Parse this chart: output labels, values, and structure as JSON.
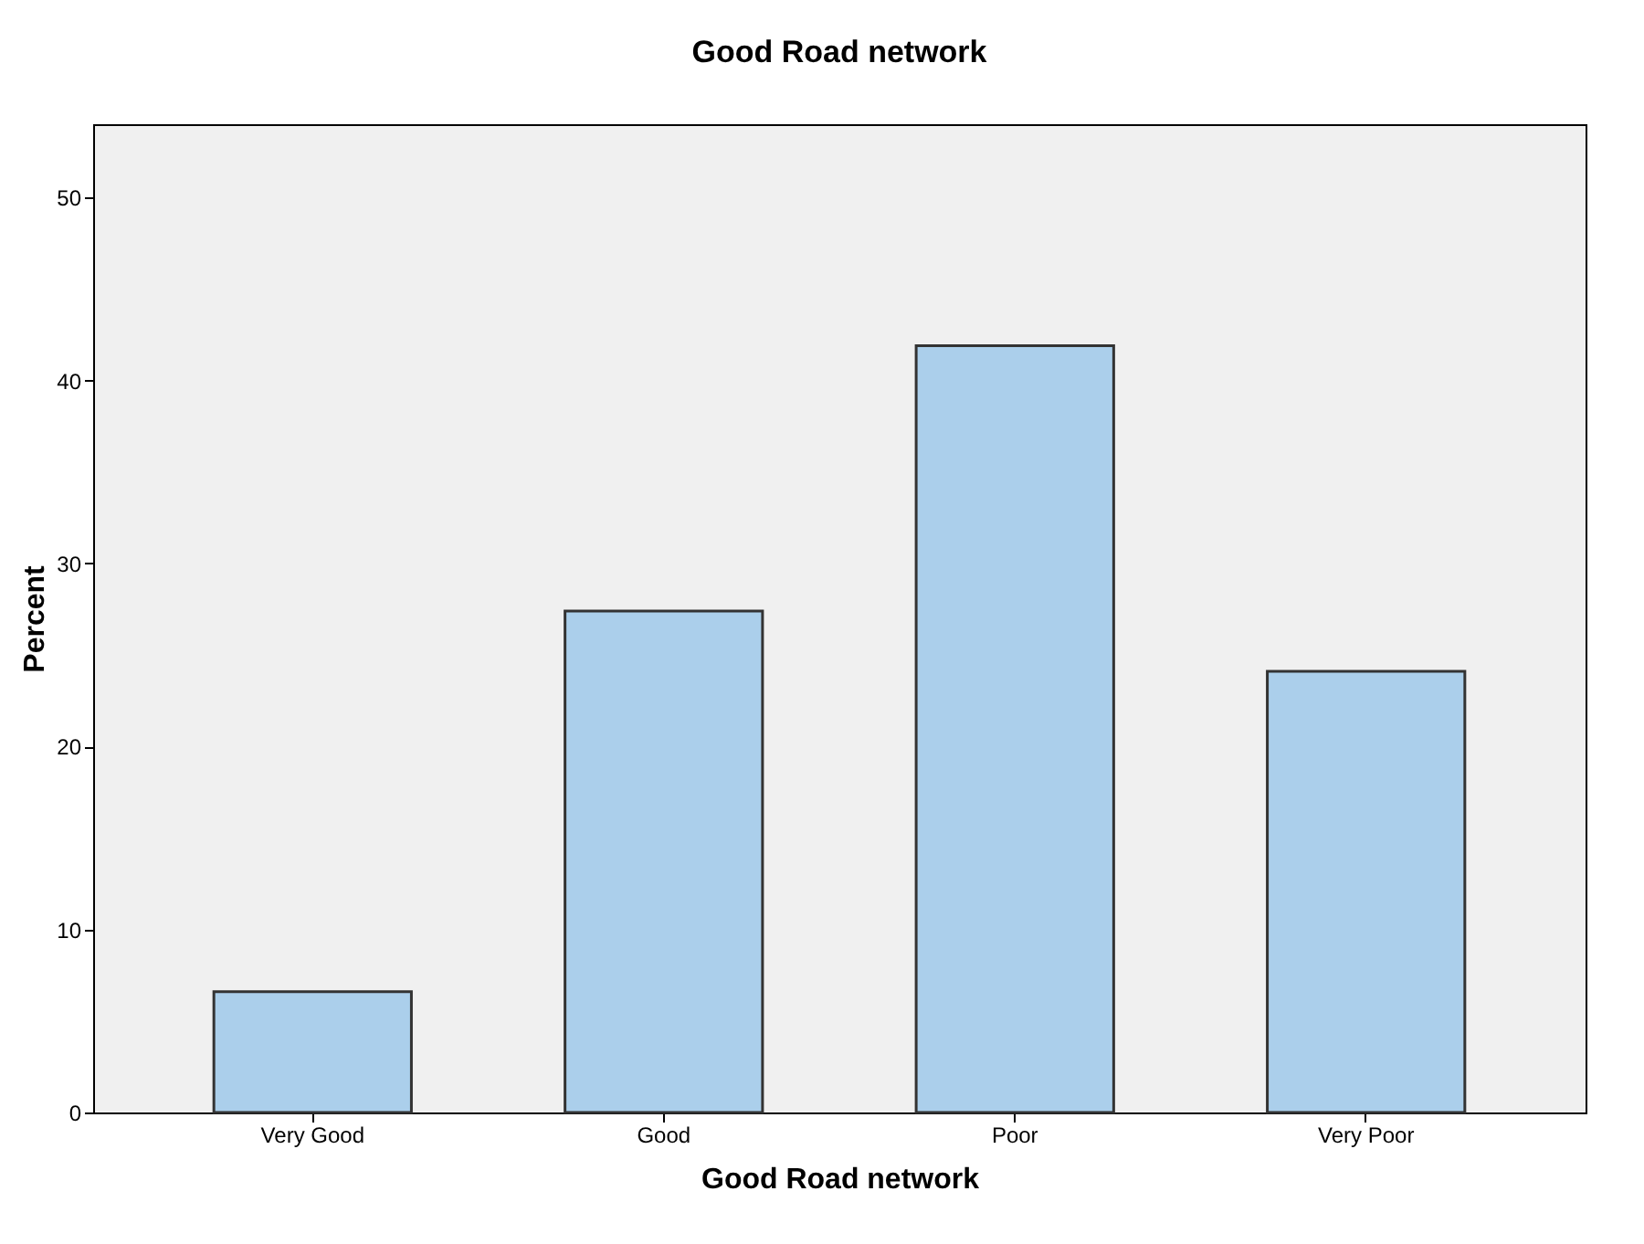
{
  "chart_data": {
    "type": "bar",
    "title": "Good Road network",
    "xlabel": "Good Road network",
    "ylabel": "Percent",
    "categories": [
      "Very Good",
      "Good",
      "Poor",
      "Very Poor"
    ],
    "values": [
      6.6,
      27.4,
      41.9,
      24.1
    ],
    "color": "#abcfeb",
    "ylim": [
      0,
      54
    ],
    "yticks": [
      0,
      10,
      20,
      30,
      40,
      50
    ],
    "grid": false
  }
}
